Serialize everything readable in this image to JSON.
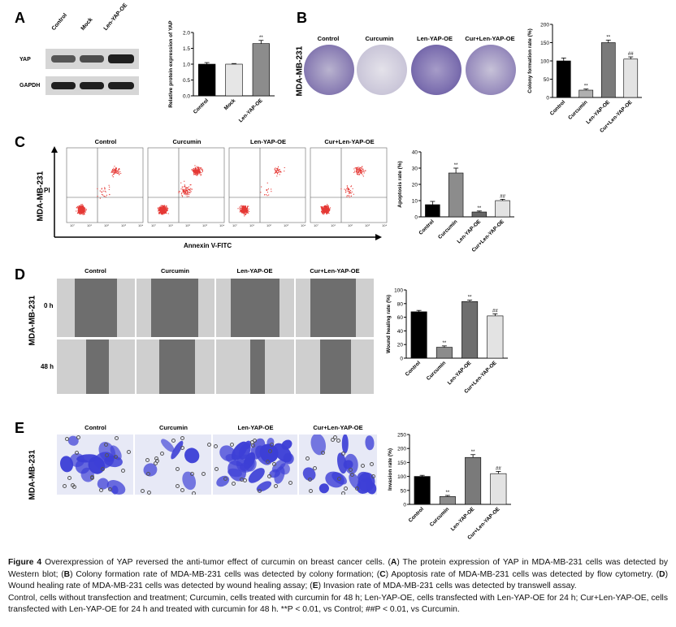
{
  "panels": {
    "A": {
      "label": "A",
      "lanes": [
        "Control",
        "Mock",
        "Len-YAP-OE"
      ],
      "bands": [
        "YAP",
        "GAPDH"
      ],
      "yap_intensity": [
        0.55,
        0.6,
        1.0
      ]
    },
    "B": {
      "label": "B",
      "cell_line": "MDA-MB-231",
      "groups": [
        "Control",
        "Curcumin",
        "Len-YAP-OE",
        "Cur+Len-YAP-OE"
      ]
    },
    "C": {
      "label": "C",
      "cell_line": "MDA-MB-231",
      "groups": [
        "Control",
        "Curcumin",
        "Len-YAP-OE",
        "Cur+Len-YAP-OE"
      ],
      "y_axis": "PI",
      "x_axis": "Annexin V-FITC",
      "log_ticks": [
        "10°",
        "10¹",
        "10²",
        "10³",
        "10⁴"
      ]
    },
    "D": {
      "label": "D",
      "cell_line": "MDA-MB-231",
      "groups": [
        "Control",
        "Curcumin",
        "Len-YAP-OE",
        "Cur+Len-YAP-OE"
      ],
      "rows": [
        "0 h",
        "48 h"
      ]
    },
    "E": {
      "label": "E",
      "cell_line": "MDA-MB-231",
      "groups": [
        "Control",
        "Curcumin",
        "Len-YAP-OE",
        "Cur+Len-YAP-OE"
      ]
    }
  },
  "chart_data": [
    {
      "type": "bar",
      "panel": "A",
      "categories": [
        "Control",
        "Mock",
        "Len-YAP-OE"
      ],
      "values": [
        1.0,
        1.0,
        1.65
      ],
      "errors": [
        0.05,
        0.02,
        0.1
      ],
      "annotations": [
        "",
        "",
        "**"
      ],
      "colors": [
        "#000000",
        "#e6e6e6",
        "#8c8c8c"
      ],
      "ylabel": "Relative protein expression of YAP",
      "ylim": [
        0,
        2.0
      ],
      "yticks": [
        0.0,
        0.5,
        1.0,
        1.5,
        2.0
      ],
      "ytick_labels": [
        "0.0",
        "0.5",
        "1.0",
        "1.5",
        "2.0"
      ]
    },
    {
      "type": "bar",
      "panel": "B",
      "categories": [
        "Control",
        "Curcumin",
        "Len-YAP-OE",
        "Cur+Len-YAP-OE"
      ],
      "values": [
        100,
        20,
        150,
        105
      ],
      "errors": [
        8,
        3,
        7,
        6
      ],
      "annotations": [
        "",
        "**",
        "**",
        "##"
      ],
      "colors": [
        "#000000",
        "#b0b0b0",
        "#7a7a7a",
        "#e3e3e3"
      ],
      "ylabel": "Colony formation rate (%)",
      "ylim": [
        0,
        200
      ],
      "yticks": [
        0,
        50,
        100,
        150,
        200
      ],
      "ytick_labels": [
        "0",
        "50",
        "100",
        "150",
        "200"
      ]
    },
    {
      "type": "bar",
      "panel": "C",
      "categories": [
        "Control",
        "Curcumin",
        "Len-YAP-OE",
        "Cur+Len-YAP-OE"
      ],
      "values": [
        7.5,
        27,
        3,
        10
      ],
      "errors": [
        2,
        3,
        0.6,
        0.8
      ],
      "annotations": [
        "",
        "**",
        "**",
        "##"
      ],
      "colors": [
        "#000000",
        "#8c8c8c",
        "#666666",
        "#e3e3e3"
      ],
      "ylabel": "Apoptosis rate (%)",
      "ylim": [
        0,
        40
      ],
      "yticks": [
        0,
        10,
        20,
        30,
        40
      ],
      "ytick_labels": [
        "0",
        "10",
        "20",
        "30",
        "40"
      ]
    },
    {
      "type": "bar",
      "panel": "D",
      "categories": [
        "Control",
        "Curcumin",
        "Len-YAP-OE",
        "Cur+Len-YAP-OE"
      ],
      "values": [
        68,
        16,
        83,
        62
      ],
      "errors": [
        2,
        2,
        2,
        3
      ],
      "annotations": [
        "",
        "**",
        "**",
        "##"
      ],
      "colors": [
        "#000000",
        "#8c8c8c",
        "#6e6e6e",
        "#e3e3e3"
      ],
      "ylabel": "Wound healing rate (%)",
      "ylim": [
        0,
        100
      ],
      "yticks": [
        0,
        20,
        40,
        60,
        80,
        100
      ],
      "ytick_labels": [
        "0",
        "20",
        "40",
        "60",
        "80",
        "100"
      ]
    },
    {
      "type": "bar",
      "panel": "E",
      "categories": [
        "Control",
        "Curcumin",
        "Len-YAP-OE",
        "Cur+Len-YAP-OE"
      ],
      "values": [
        100,
        28,
        168,
        110
      ],
      "errors": [
        4,
        4,
        10,
        8
      ],
      "annotations": [
        "",
        "**",
        "**",
        "##"
      ],
      "colors": [
        "#000000",
        "#8c8c8c",
        "#7a7a7a",
        "#e3e3e3"
      ],
      "ylabel": "Invasion rate (%)",
      "ylim": [
        0,
        250
      ],
      "yticks": [
        0,
        50,
        100,
        150,
        200,
        250
      ],
      "ytick_labels": [
        "0",
        "50",
        "100",
        "150",
        "200",
        "250"
      ]
    }
  ],
  "caption": {
    "figure_label": "Figure 4",
    "title": " Overexpression of YAP reversed the anti-tumor effect of curcumin on breast cancer cells. (",
    "a_label": "A",
    "a_text": ") The protein expression of YAP in MDA-MB-231 cells was detected by Western blot; (",
    "b_label": "B",
    "b_text": ") Colony formation rate of MDA-MB-231 cells was detected by colony formation; (",
    "c_label": "C",
    "c_text": ") Apoptosis rate of MDA-MB-231 cells was detected by flow cytometry. (",
    "d_label": "D",
    "d_text": ") Wound healing rate of MDA-MB-231 cells was detected by wound healing assay; (",
    "e_label": "E",
    "e_text": ") Invasion rate of MDA-MB-231 cells was detected by transwell assay.",
    "abbreviations": "Control, cells without transfection and treatment; Curcumin, cells treated with curcumin for 48 h; Len-YAP-OE, cells transfected with Len-YAP-OE for 24 h; Cur+Len-YAP-OE, cells transfected with Len-YAP-OE for 24 h and treated with curcumin for 48 h. **P < 0.01, vs Control; ##P < 0.01, vs Curcumin."
  }
}
